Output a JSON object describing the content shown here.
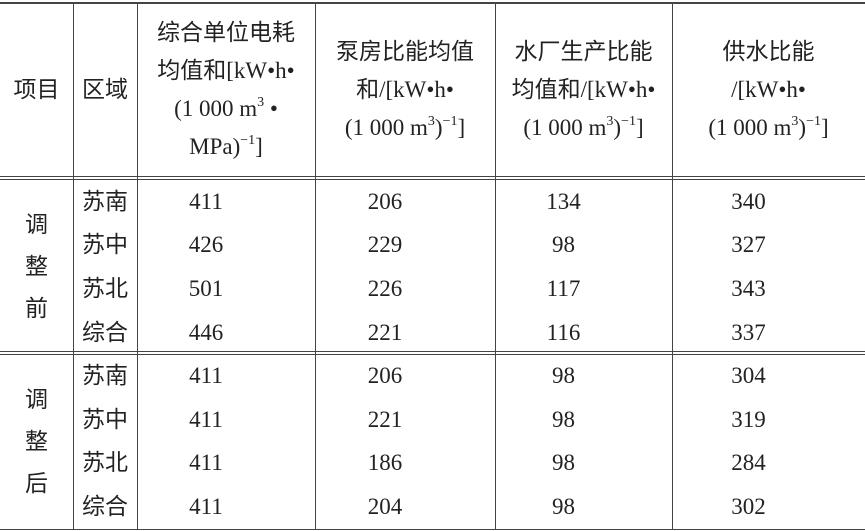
{
  "table": {
    "header": [
      [
        [
          "项目"
        ]
      ],
      [
        [
          "区域"
        ]
      ],
      [
        [
          "综合单位电耗"
        ],
        [
          "均值和[kW•h•"
        ],
        [
          "(1 000 m",
          "3",
          " •"
        ],
        [
          "MPa)",
          "−1",
          "]"
        ]
      ],
      [
        [
          "泵房比能均值"
        ],
        [
          "和/[kW•h•"
        ],
        [
          "(1 000 m",
          "3",
          ")",
          "−1",
          "]"
        ]
      ],
      [
        [
          "水厂生产比能"
        ],
        [
          "均值和/[kW•h•"
        ],
        [
          "(1 000 m",
          "3",
          ")",
          "−1",
          "]"
        ]
      ],
      [
        [
          "供水比能"
        ],
        [
          "/[kW•h•"
        ],
        [
          "(1 000 m",
          "3",
          ")",
          "−1",
          "]"
        ]
      ]
    ],
    "groups": [
      {
        "label": "调整前",
        "rows": [
          [
            "苏南",
            "411",
            "206",
            "134",
            "340"
          ],
          [
            "苏中",
            "426",
            "229",
            "98",
            "327"
          ],
          [
            "苏北",
            "501",
            "226",
            "117",
            "343"
          ],
          [
            "综合",
            "446",
            "221",
            "116",
            "337"
          ]
        ]
      },
      {
        "label": "调整后",
        "rows": [
          [
            "苏南",
            "411",
            "206",
            "98",
            "304"
          ],
          [
            "苏中",
            "411",
            "221",
            "98",
            "319"
          ],
          [
            "苏北",
            "411",
            "186",
            "98",
            "284"
          ],
          [
            "综合",
            "411",
            "204",
            "98",
            "302"
          ]
        ]
      }
    ]
  }
}
